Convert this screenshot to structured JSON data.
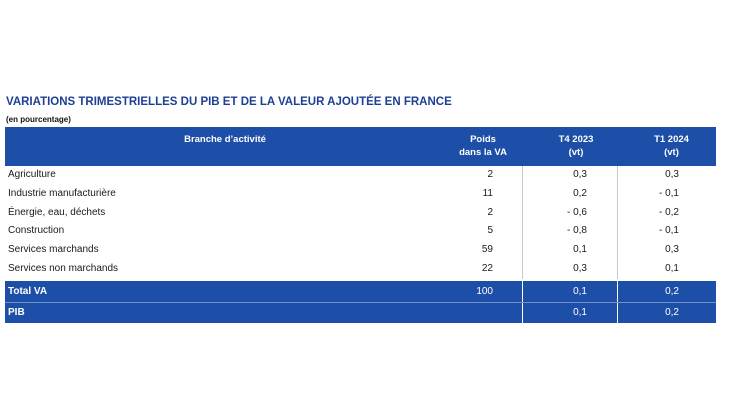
{
  "title": "VARIATIONS TRIMESTRIELLES DU PIB ET DE LA VALEUR AJOUTÉE EN FRANCE",
  "subtitle": "(en pourcentage)",
  "headers": {
    "branch": "Branche d’activité",
    "poids_1": "Poids",
    "poids_2": "dans la VA",
    "t4_1": "T4 2023",
    "t4_2": "(vt)",
    "t1_1": "T1 2024",
    "t1_2": "(vt)"
  },
  "rows": [
    {
      "branch": "Agriculture",
      "poids": "2",
      "t4": "0,3",
      "t1": "0,3"
    },
    {
      "branch": "Industrie manufacturière",
      "poids": "11",
      "t4": "0,2",
      "t1": "- 0,1"
    },
    {
      "branch": "Énergie, eau, déchets",
      "poids": "2",
      "t4": "- 0,6",
      "t1": "- 0,2"
    },
    {
      "branch": "Construction",
      "poids": "5",
      "t4": "- 0,8",
      "t1": "- 0,1"
    },
    {
      "branch": "Services marchands",
      "poids": "59",
      "t4": "0,1",
      "t1": "0,3"
    },
    {
      "branch": "Services non marchands",
      "poids": "22",
      "t4": "0,3",
      "t1": "0,1"
    }
  ],
  "total": {
    "branch": "Total VA",
    "poids": "100",
    "t4": "0,1",
    "t1": "0,2"
  },
  "pib": {
    "branch": "PIB",
    "poids": "",
    "t4": "0,1",
    "t1": "0,2"
  },
  "colors": {
    "header_bg": "#1e4fa8",
    "title": "#1d3f94"
  }
}
